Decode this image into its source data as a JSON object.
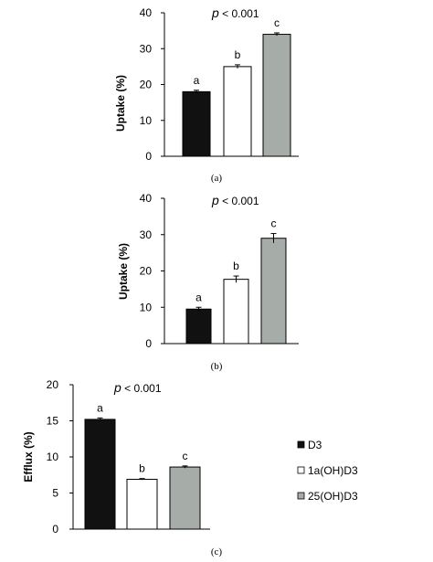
{
  "colors": {
    "D3": "#111111",
    "1a(OH)D3": "#ffffff",
    "25(OH)D3": "#a6aca8"
  },
  "legend": [
    "D3",
    "1a(OH)D3",
    "25(OH)D3"
  ],
  "chart_data": [
    {
      "type": "bar",
      "panel": "(a)",
      "p_prefix": "p",
      "p_suffix": " < 0.001",
      "ylabel": "Uptake (%)",
      "ylim": [
        0,
        40
      ],
      "yticks": [
        0,
        10,
        20,
        30,
        40
      ],
      "categories": [
        "D3",
        "1a(OH)D3",
        "25(OH)D3"
      ],
      "values": [
        18,
        25,
        34
      ],
      "errors": [
        0.4,
        0.5,
        0.4
      ],
      "letters": [
        "a",
        "b",
        "c"
      ]
    },
    {
      "type": "bar",
      "panel": "(b)",
      "p_prefix": "p",
      "p_suffix": " < 0.001",
      "ylabel": "Uptake (%)",
      "ylim": [
        0,
        40
      ],
      "yticks": [
        0,
        10,
        20,
        30,
        40
      ],
      "categories": [
        "D3",
        "1a(OH)D3",
        "25(OH)D3"
      ],
      "values": [
        9.5,
        17.7,
        29
      ],
      "errors": [
        0.5,
        0.9,
        1.3
      ],
      "letters": [
        "a",
        "b",
        "c"
      ]
    },
    {
      "type": "bar",
      "panel": "(c)",
      "p_prefix": "p",
      "p_suffix": " < 0.001",
      "ylabel": "Efflux (%)",
      "ylim": [
        0,
        20
      ],
      "yticks": [
        0,
        5,
        10,
        15,
        20
      ],
      "categories": [
        "D3",
        "1a(OH)D3",
        "25(OH)D3"
      ],
      "values": [
        15.2,
        6.9,
        8.6
      ],
      "errors": [
        0.2,
        0.1,
        0.15
      ],
      "letters": [
        "a",
        "b",
        "c"
      ]
    }
  ]
}
